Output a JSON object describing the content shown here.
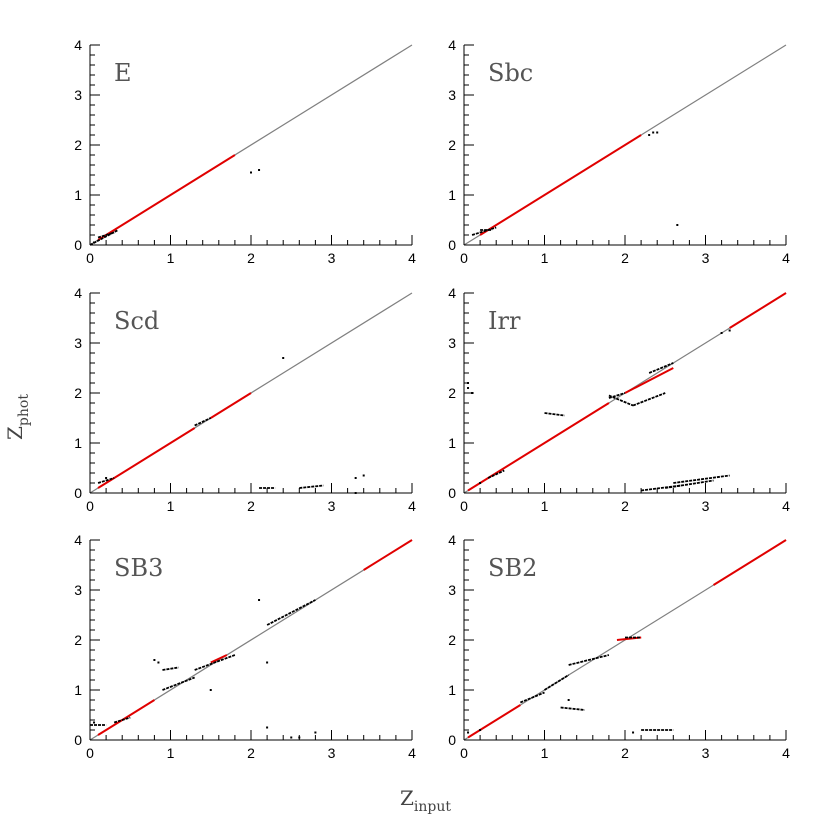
{
  "figure": {
    "xlabel_main": "Z",
    "xlabel_sub": "input",
    "ylabel_main": "Z",
    "ylabel_sub": "phot"
  },
  "colors": {
    "axis": "#000000",
    "one_to_one": "#808080",
    "red_points": "#e00000",
    "black_points": "#000000",
    "panel_label": "#555555"
  },
  "chart_data": [
    {
      "type": "scatter",
      "title": "E",
      "xlim": [
        0,
        4
      ],
      "ylim": [
        0,
        4
      ],
      "xticks": [
        0,
        1,
        2,
        3,
        4
      ],
      "yticks": [
        0,
        1,
        2,
        3,
        4
      ],
      "one_to_one_line": true,
      "red_segments": [
        [
          [
            0.1,
            0.1
          ],
          [
            1.8,
            1.8
          ]
        ]
      ],
      "black_segments": [
        [
          [
            0.0,
            0.0
          ],
          [
            0.35,
            0.3
          ]
        ],
        [
          [
            0.1,
            0.15
          ],
          [
            0.3,
            0.25
          ]
        ]
      ],
      "black_points": [
        [
          2.1,
          1.5
        ],
        [
          2.0,
          1.45
        ],
        [
          0.05,
          0.05
        ]
      ]
    },
    {
      "type": "scatter",
      "title": "Sbc",
      "xlim": [
        0,
        4
      ],
      "ylim": [
        0,
        4
      ],
      "xticks": [
        0,
        1,
        2,
        3,
        4
      ],
      "yticks": [
        0,
        1,
        2,
        3,
        4
      ],
      "one_to_one_line": true,
      "red_segments": [
        [
          [
            0.2,
            0.2
          ],
          [
            2.2,
            2.2
          ]
        ]
      ],
      "black_segments": [
        [
          [
            0.1,
            0.2
          ],
          [
            0.4,
            0.35
          ]
        ],
        [
          [
            0.2,
            0.3
          ],
          [
            0.35,
            0.3
          ]
        ]
      ],
      "black_points": [
        [
          2.3,
          2.2
        ],
        [
          2.35,
          2.25
        ],
        [
          2.4,
          2.25
        ],
        [
          2.65,
          0.4
        ]
      ]
    },
    {
      "type": "scatter",
      "title": "Scd",
      "xlim": [
        0,
        4
      ],
      "ylim": [
        0,
        4
      ],
      "xticks": [
        0,
        1,
        2,
        3,
        4
      ],
      "yticks": [
        0,
        1,
        2,
        3,
        4
      ],
      "one_to_one_line": true,
      "red_segments": [
        [
          [
            0.1,
            0.1
          ],
          [
            1.3,
            1.3
          ]
        ],
        [
          [
            1.5,
            1.5
          ],
          [
            2.0,
            2.0
          ]
        ]
      ],
      "black_segments": [
        [
          [
            0.1,
            0.2
          ],
          [
            0.3,
            0.3
          ]
        ],
        [
          [
            2.6,
            0.1
          ],
          [
            2.9,
            0.15
          ]
        ],
        [
          [
            1.3,
            1.35
          ],
          [
            1.5,
            1.5
          ]
        ],
        [
          [
            2.1,
            0.1
          ],
          [
            2.3,
            0.1
          ]
        ]
      ],
      "black_points": [
        [
          3.3,
          0.3
        ],
        [
          3.4,
          0.35
        ],
        [
          2.4,
          2.7
        ],
        [
          0.2,
          0.3
        ],
        [
          3.3,
          0.0
        ]
      ]
    },
    {
      "type": "scatter",
      "title": "Irr",
      "xlim": [
        0,
        4
      ],
      "ylim": [
        0,
        4
      ],
      "xticks": [
        0,
        1,
        2,
        3,
        4
      ],
      "yticks": [
        0,
        1,
        2,
        3,
        4
      ],
      "one_to_one_line": true,
      "red_segments": [
        [
          [
            0.05,
            0.05
          ],
          [
            1.8,
            1.8
          ]
        ],
        [
          [
            2.0,
            2.0
          ],
          [
            2.6,
            2.5
          ]
        ],
        [
          [
            3.3,
            3.3
          ],
          [
            4.0,
            4.0
          ]
        ]
      ],
      "black_segments": [
        [
          [
            1.0,
            1.6
          ],
          [
            1.25,
            1.55
          ]
        ],
        [
          [
            1.8,
            1.95
          ],
          [
            2.1,
            1.75
          ]
        ],
        [
          [
            2.1,
            1.75
          ],
          [
            2.5,
            2.0
          ]
        ],
        [
          [
            2.3,
            2.4
          ],
          [
            2.6,
            2.6
          ]
        ],
        [
          [
            2.2,
            0.05
          ],
          [
            2.7,
            0.15
          ]
        ],
        [
          [
            2.6,
            0.2
          ],
          [
            3.3,
            0.35
          ]
        ],
        [
          [
            2.5,
            0.1
          ],
          [
            3.1,
            0.25
          ]
        ],
        [
          [
            0.3,
            0.3
          ],
          [
            0.5,
            0.45
          ]
        ],
        [
          [
            1.8,
            1.9
          ],
          [
            2.0,
            2.0
          ]
        ]
      ],
      "black_points": [
        [
          0.05,
          2.1
        ],
        [
          0.1,
          2.0
        ],
        [
          0.05,
          2.2
        ],
        [
          0.2,
          0.2
        ],
        [
          3.2,
          3.2
        ],
        [
          3.3,
          3.25
        ]
      ]
    },
    {
      "type": "scatter",
      "title": "SB3",
      "xlim": [
        0,
        4
      ],
      "ylim": [
        0,
        4
      ],
      "xticks": [
        0,
        1,
        2,
        3,
        4
      ],
      "yticks": [
        0,
        1,
        2,
        3,
        4
      ],
      "one_to_one_line": true,
      "red_segments": [
        [
          [
            0.1,
            0.1
          ],
          [
            0.8,
            0.8
          ]
        ],
        [
          [
            1.5,
            1.55
          ],
          [
            1.7,
            1.7
          ]
        ],
        [
          [
            3.4,
            3.4
          ],
          [
            4.0,
            4.0
          ]
        ]
      ],
      "black_segments": [
        [
          [
            0.9,
            1.0
          ],
          [
            1.3,
            1.25
          ]
        ],
        [
          [
            1.3,
            1.4
          ],
          [
            1.8,
            1.7
          ]
        ],
        [
          [
            2.2,
            2.3
          ],
          [
            2.8,
            2.8
          ]
        ],
        [
          [
            0.9,
            1.4
          ],
          [
            1.1,
            1.45
          ]
        ],
        [
          [
            0.0,
            0.3
          ],
          [
            0.2,
            0.3
          ]
        ],
        [
          [
            0.3,
            0.35
          ],
          [
            0.5,
            0.45
          ]
        ]
      ],
      "black_points": [
        [
          0.8,
          1.6
        ],
        [
          0.85,
          1.55
        ],
        [
          2.2,
          1.55
        ],
        [
          1.5,
          1.0
        ],
        [
          2.5,
          0.05
        ],
        [
          2.6,
          0.05
        ],
        [
          2.2,
          0.25
        ],
        [
          2.8,
          0.15
        ],
        [
          2.1,
          2.8
        ],
        [
          0.05,
          0.35
        ]
      ]
    },
    {
      "type": "scatter",
      "title": "SB2",
      "xlim": [
        0,
        4
      ],
      "ylim": [
        0,
        4
      ],
      "xticks": [
        0,
        1,
        2,
        3,
        4
      ],
      "yticks": [
        0,
        1,
        2,
        3,
        4
      ],
      "one_to_one_line": true,
      "red_segments": [
        [
          [
            0.05,
            0.05
          ],
          [
            0.7,
            0.7
          ]
        ],
        [
          [
            1.9,
            2.0
          ],
          [
            2.2,
            2.05
          ]
        ],
        [
          [
            3.1,
            3.1
          ],
          [
            4.0,
            4.0
          ]
        ]
      ],
      "black_segments": [
        [
          [
            0.7,
            0.75
          ],
          [
            1.0,
            0.95
          ]
        ],
        [
          [
            1.0,
            1.0
          ],
          [
            1.3,
            1.3
          ]
        ],
        [
          [
            1.3,
            1.5
          ],
          [
            1.8,
            1.7
          ]
        ],
        [
          [
            2.0,
            2.05
          ],
          [
            2.2,
            2.05
          ]
        ],
        [
          [
            2.2,
            0.2
          ],
          [
            2.6,
            0.2
          ]
        ],
        [
          [
            1.2,
            0.65
          ],
          [
            1.5,
            0.6
          ]
        ]
      ],
      "black_points": [
        [
          0.05,
          0.15
        ],
        [
          1.3,
          0.8
        ],
        [
          0.2,
          0.2
        ],
        [
          2.1,
          0.15
        ]
      ]
    }
  ]
}
